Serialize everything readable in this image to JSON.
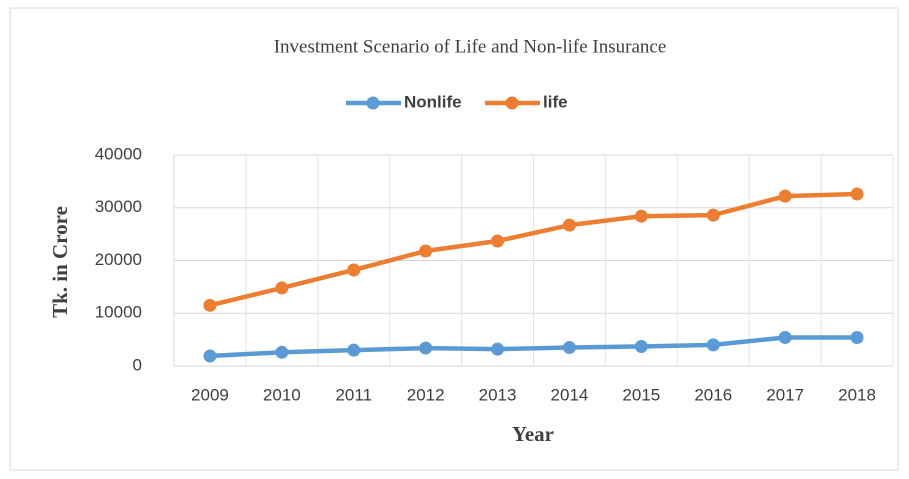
{
  "chart_data": {
    "type": "line",
    "title": "Investment Scenario of Life and Non-life Insurance",
    "xlabel": "Year",
    "ylabel": "Tk. in Crore",
    "categories": [
      "2009",
      "2010",
      "2011",
      "2012",
      "2013",
      "2014",
      "2015",
      "2016",
      "2017",
      "2018"
    ],
    "series": [
      {
        "name": "Nonlife",
        "color": "#5b9bd5",
        "values": [
          1900,
          2600,
          3000,
          3400,
          3200,
          3500,
          3700,
          4000,
          5400,
          5400
        ]
      },
      {
        "name": "life",
        "color": "#ed7d31",
        "values": [
          11500,
          14800,
          18200,
          21800,
          23700,
          26700,
          28400,
          28600,
          32200,
          32600
        ]
      }
    ],
    "ylim": [
      0,
      40000
    ],
    "yticks": [
      0,
      10000,
      20000,
      30000,
      40000
    ],
    "grid": true,
    "legend": "top"
  }
}
